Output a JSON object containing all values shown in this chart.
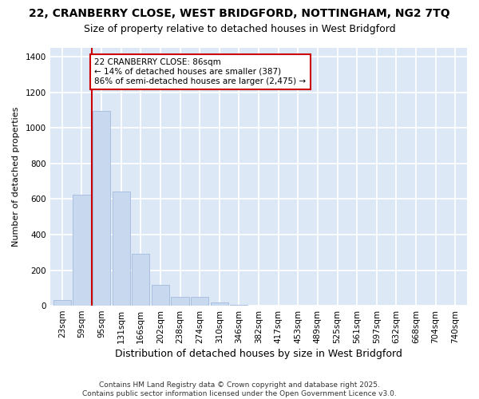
{
  "title_line1": "22, CRANBERRY CLOSE, WEST BRIDGFORD, NOTTINGHAM, NG2 7TQ",
  "title_line2": "Size of property relative to detached houses in West Bridgford",
  "xlabel": "Distribution of detached houses by size in West Bridgford",
  "ylabel": "Number of detached properties",
  "categories": [
    "23sqm",
    "59sqm",
    "95sqm",
    "131sqm",
    "166sqm",
    "202sqm",
    "238sqm",
    "274sqm",
    "310sqm",
    "346sqm",
    "382sqm",
    "417sqm",
    "453sqm",
    "489sqm",
    "525sqm",
    "561sqm",
    "597sqm",
    "632sqm",
    "668sqm",
    "704sqm",
    "740sqm"
  ],
  "bar_heights": [
    30,
    625,
    1095,
    640,
    290,
    115,
    50,
    50,
    20,
    5,
    0,
    0,
    0,
    0,
    0,
    0,
    0,
    0,
    0,
    0,
    0
  ],
  "bar_color": "#c8d8ee",
  "bar_edgecolor": "#a8c0de",
  "fig_background": "#ffffff",
  "ax_background": "#dce8f5",
  "grid_color": "#ffffff",
  "ylim": [
    0,
    1450
  ],
  "yticks": [
    0,
    200,
    400,
    600,
    800,
    1000,
    1200,
    1400
  ],
  "vline_color": "#cc0000",
  "annotation_text": "22 CRANBERRY CLOSE: 86sqm\n← 14% of detached houses are smaller (387)\n86% of semi-detached houses are larger (2,475) →",
  "annotation_box_color": "#cc0000",
  "footer_line1": "Contains HM Land Registry data © Crown copyright and database right 2025.",
  "footer_line2": "Contains public sector information licensed under the Open Government Licence v3.0.",
  "title1_fontsize": 10,
  "title2_fontsize": 9,
  "xlabel_fontsize": 9,
  "ylabel_fontsize": 8,
  "tick_fontsize": 7.5,
  "footer_fontsize": 6.5
}
